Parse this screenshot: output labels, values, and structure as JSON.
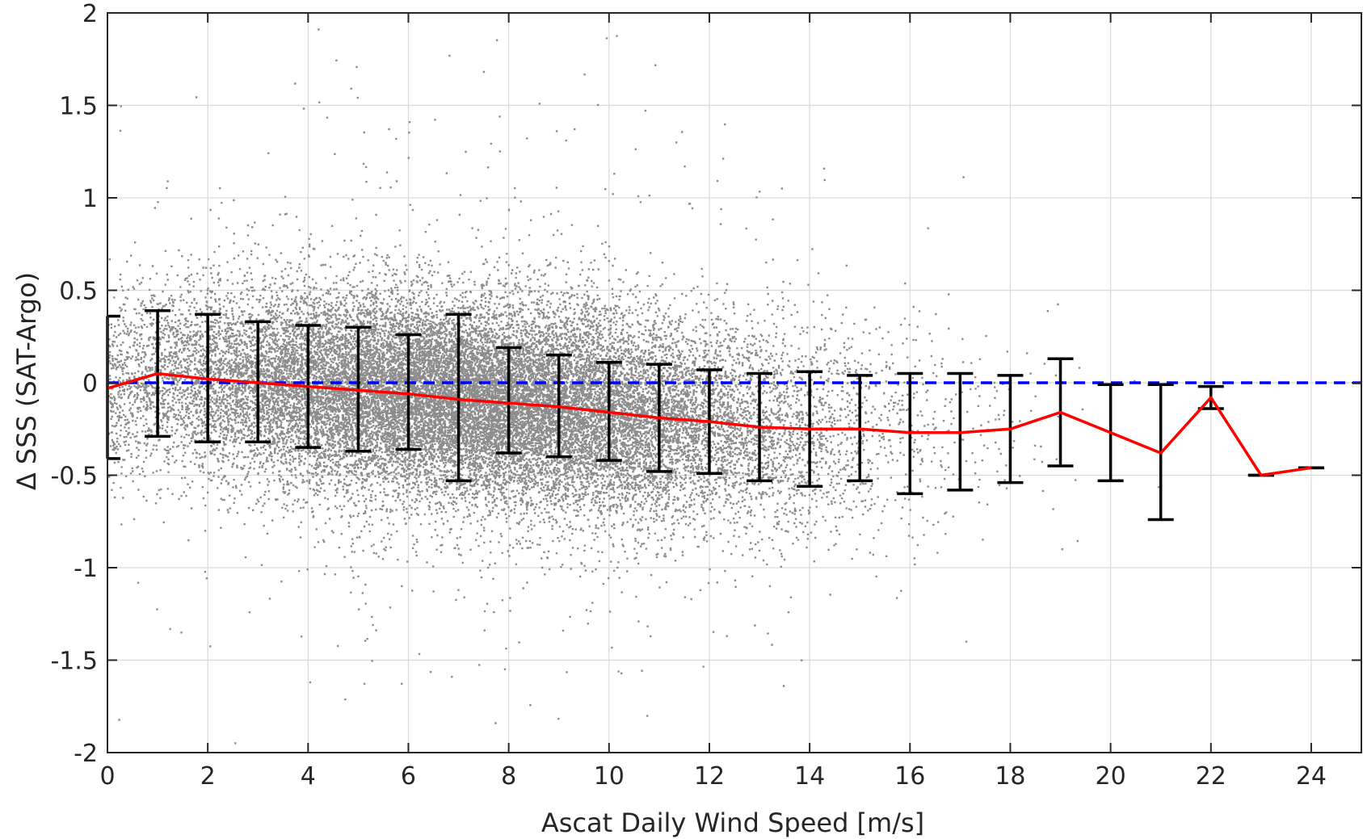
{
  "chart_data": {
    "type": "scatter",
    "title": "",
    "xlabel": "Ascat Daily Wind Speed [m/s]",
    "ylabel": "Δ SSS (SAT-Argo)",
    "xlim": [
      0,
      25
    ],
    "ylim": [
      -2,
      2
    ],
    "xticks": [
      0,
      2,
      4,
      6,
      8,
      10,
      12,
      14,
      16,
      18,
      20,
      22,
      24
    ],
    "yticks": [
      -2,
      -1.5,
      -1,
      -0.5,
      0,
      0.5,
      1,
      1.5,
      2
    ],
    "ytick_labels": [
      "-2",
      "-1.5",
      "-1",
      "-0.5",
      "0",
      "0.5",
      "1",
      "1.5",
      "2"
    ],
    "grid": true,
    "colors": {
      "scatter": "#8c8c8c",
      "mean_line": "#ff0000",
      "error_bars": "#000000",
      "zero_line": "#0000ff",
      "grid": "#d9d9d9",
      "axes": "#262626"
    },
    "scatter_description": "dense cloud of grey points centred near wind speeds 2-16 m/s, spread roughly ±0.8",
    "mean_line": {
      "x": [
        0,
        1,
        2,
        3,
        4,
        5,
        6,
        7,
        8,
        9,
        10,
        11,
        12,
        13,
        14,
        15,
        16,
        17,
        18,
        19,
        20,
        21,
        22,
        23,
        24
      ],
      "y": [
        -0.03,
        0.05,
        0.02,
        0.0,
        -0.02,
        -0.04,
        -0.06,
        -0.09,
        -0.11,
        -0.13,
        -0.16,
        -0.19,
        -0.21,
        -0.24,
        -0.25,
        -0.25,
        -0.27,
        -0.27,
        -0.25,
        -0.16,
        -0.27,
        -0.38,
        -0.08,
        -0.5,
        -0.46
      ]
    },
    "error_bars": [
      {
        "x": 0,
        "low": -0.41,
        "high": 0.36
      },
      {
        "x": 1,
        "low": -0.29,
        "high": 0.39
      },
      {
        "x": 2,
        "low": -0.32,
        "high": 0.37
      },
      {
        "x": 3,
        "low": -0.32,
        "high": 0.33
      },
      {
        "x": 4,
        "low": -0.35,
        "high": 0.31
      },
      {
        "x": 5,
        "low": -0.37,
        "high": 0.3
      },
      {
        "x": 6,
        "low": -0.36,
        "high": 0.26
      },
      {
        "x": 7,
        "low": -0.53,
        "high": 0.37
      },
      {
        "x": 8,
        "low": -0.38,
        "high": 0.19
      },
      {
        "x": 9,
        "low": -0.4,
        "high": 0.15
      },
      {
        "x": 10,
        "low": -0.42,
        "high": 0.11
      },
      {
        "x": 11,
        "low": -0.48,
        "high": 0.1
      },
      {
        "x": 12,
        "low": -0.49,
        "high": 0.07
      },
      {
        "x": 13,
        "low": -0.53,
        "high": 0.05
      },
      {
        "x": 14,
        "low": -0.56,
        "high": 0.06
      },
      {
        "x": 15,
        "low": -0.53,
        "high": 0.04
      },
      {
        "x": 16,
        "low": -0.6,
        "high": 0.05
      },
      {
        "x": 17,
        "low": -0.58,
        "high": 0.05
      },
      {
        "x": 18,
        "low": -0.54,
        "high": 0.04
      },
      {
        "x": 19,
        "low": -0.45,
        "high": 0.13
      },
      {
        "x": 20,
        "low": -0.53,
        "high": -0.01
      },
      {
        "x": 21,
        "low": -0.74,
        "high": -0.01
      },
      {
        "x": 22,
        "low": -0.14,
        "high": -0.02
      },
      {
        "x": 23,
        "low": -0.5,
        "high": -0.5
      },
      {
        "x": 24,
        "low": -0.46,
        "high": -0.46
      }
    ],
    "reference_line": {
      "y": 0,
      "style": "dashed"
    }
  }
}
